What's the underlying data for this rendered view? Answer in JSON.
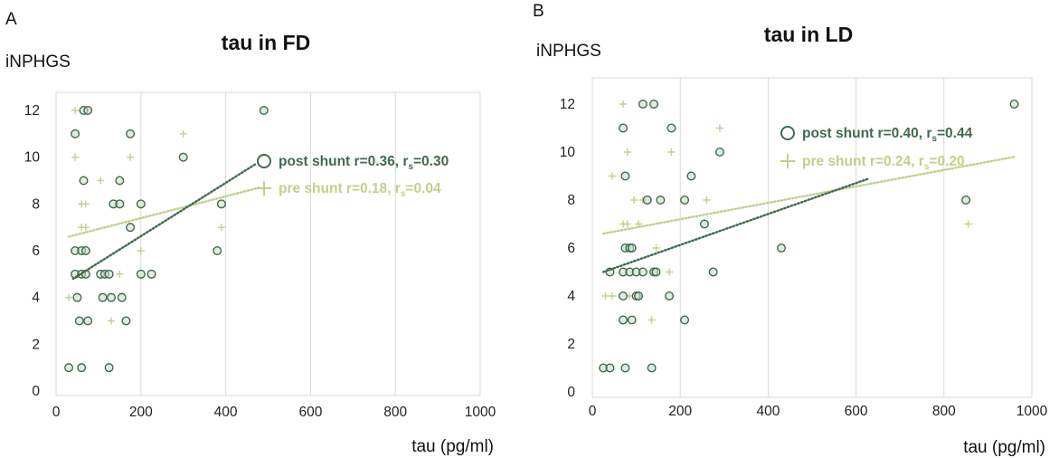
{
  "chart_data": [
    {
      "type": "scatter",
      "panel": "A",
      "title": "tau in FD",
      "ylabel": "iNPHGS",
      "xlabel": "tau (pg/ml)",
      "xlim": [
        0,
        1000
      ],
      "ylim": [
        0,
        13
      ],
      "xticks": [
        "0",
        "200",
        "400",
        "600",
        "800",
        "1000"
      ],
      "yticks": [
        "0",
        "2",
        "4",
        "6",
        "8",
        "10",
        "12"
      ],
      "grid": "vertical",
      "legend_position": "right-center",
      "colors": {
        "post": "#3f6b4f",
        "pre": "#c2cf8a"
      },
      "series": [
        {
          "name": "post shunt",
          "marker": "circle",
          "legend_text": "post shunt r=0.36, r",
          "legend_sub": "s",
          "legend_tail": "=0.30",
          "points": [
            [
              30,
              1
            ],
            [
              60,
              1
            ],
            [
              125,
              1
            ],
            [
              55,
              3
            ],
            [
              75,
              3
            ],
            [
              165,
              3
            ],
            [
              50,
              4
            ],
            [
              110,
              4
            ],
            [
              130,
              4
            ],
            [
              155,
              4
            ],
            [
              45,
              5
            ],
            [
              60,
              5
            ],
            [
              70,
              5
            ],
            [
              105,
              5
            ],
            [
              115,
              5
            ],
            [
              125,
              5
            ],
            [
              200,
              5
            ],
            [
              225,
              5
            ],
            [
              45,
              6
            ],
            [
              60,
              6
            ],
            [
              70,
              6
            ],
            [
              380,
              6
            ],
            [
              175,
              7
            ],
            [
              135,
              8
            ],
            [
              150,
              8
            ],
            [
              200,
              8
            ],
            [
              390,
              8
            ],
            [
              65,
              9
            ],
            [
              150,
              9
            ],
            [
              300,
              10
            ],
            [
              45,
              11
            ],
            [
              175,
              11
            ],
            [
              65,
              12
            ],
            [
              75,
              12
            ],
            [
              490,
              12
            ]
          ],
          "trend": [
            [
              40,
              4.8
            ],
            [
              470,
              9.7
            ]
          ]
        },
        {
          "name": "pre shunt",
          "marker": "plus",
          "legend_text": "pre shunt r=0.18, r",
          "legend_sub": "s",
          "legend_tail": "=0.04",
          "points": [
            [
              30,
              4
            ],
            [
              150,
              5
            ],
            [
              200,
              6
            ],
            [
              390,
              7
            ],
            [
              60,
              7
            ],
            [
              70,
              7
            ],
            [
              60,
              8
            ],
            [
              70,
              8
            ],
            [
              105,
              9
            ],
            [
              45,
              10
            ],
            [
              175,
              10
            ],
            [
              300,
              11
            ],
            [
              45,
              12
            ],
            [
              130,
              3
            ]
          ],
          "trend": [
            [
              30,
              6.6
            ],
            [
              480,
              8.7
            ]
          ]
        }
      ]
    },
    {
      "type": "scatter",
      "panel": "B",
      "title": "tau in LD",
      "ylabel": "iNPHGS",
      "xlabel": "tau (pg/ml)",
      "xlim": [
        0,
        1000
      ],
      "ylim": [
        0,
        13
      ],
      "xticks": [
        "0",
        "200",
        "400",
        "600",
        "800",
        "1000"
      ],
      "yticks": [
        "0",
        "2",
        "4",
        "6",
        "8",
        "10",
        "12"
      ],
      "grid": "vertical",
      "legend_position": "top-right",
      "colors": {
        "post": "#3f6b4f",
        "pre": "#c2cf8a"
      },
      "series": [
        {
          "name": "post shunt",
          "marker": "circle",
          "legend_text": "post shunt r=0.40, r",
          "legend_sub": "s",
          "legend_tail": "=0.44",
          "points": [
            [
              25,
              1
            ],
            [
              40,
              1
            ],
            [
              75,
              1
            ],
            [
              135,
              1
            ],
            [
              70,
              3
            ],
            [
              90,
              3
            ],
            [
              210,
              3
            ],
            [
              70,
              4
            ],
            [
              100,
              4
            ],
            [
              105,
              4
            ],
            [
              175,
              4
            ],
            [
              40,
              5
            ],
            [
              70,
              5
            ],
            [
              85,
              5
            ],
            [
              100,
              5
            ],
            [
              115,
              5
            ],
            [
              140,
              5
            ],
            [
              145,
              5
            ],
            [
              275,
              5
            ],
            [
              75,
              6
            ],
            [
              85,
              6
            ],
            [
              90,
              6
            ],
            [
              430,
              6
            ],
            [
              255,
              7
            ],
            [
              125,
              8
            ],
            [
              155,
              8
            ],
            [
              210,
              8
            ],
            [
              850,
              8
            ],
            [
              75,
              9
            ],
            [
              225,
              9
            ],
            [
              290,
              10
            ],
            [
              70,
              11
            ],
            [
              180,
              11
            ],
            [
              115,
              12
            ],
            [
              140,
              12
            ],
            [
              960,
              12
            ]
          ],
          "trend": [
            [
              25,
              5.0
            ],
            [
              630,
              8.9
            ]
          ]
        },
        {
          "name": "pre shunt",
          "marker": "plus",
          "legend_text": "pre shunt r=0.24, r",
          "legend_sub": "s",
          "legend_tail": "=0.20",
          "points": [
            [
              30,
              4
            ],
            [
              45,
              4
            ],
            [
              85,
              4
            ],
            [
              135,
              3
            ],
            [
              145,
              6
            ],
            [
              175,
              5
            ],
            [
              70,
              7
            ],
            [
              80,
              7
            ],
            [
              105,
              7
            ],
            [
              95,
              8
            ],
            [
              115,
              8
            ],
            [
              260,
              8
            ],
            [
              45,
              9
            ],
            [
              80,
              10
            ],
            [
              180,
              10
            ],
            [
              70,
              12
            ],
            [
              290,
              11
            ],
            [
              855,
              7
            ]
          ],
          "trend": [
            [
              25,
              6.6
            ],
            [
              960,
              9.8
            ]
          ]
        }
      ]
    }
  ]
}
